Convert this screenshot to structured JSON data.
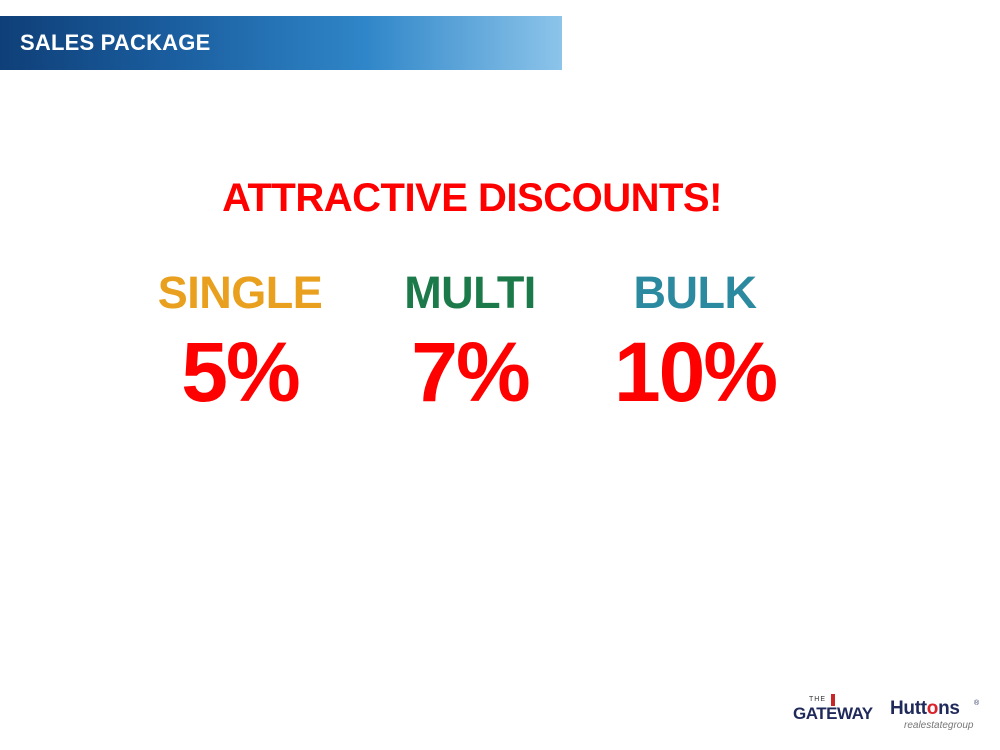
{
  "header": {
    "title": "SALES PACKAGE"
  },
  "headline": {
    "text": "ATTRACTIVE DISCOUNTS!",
    "color": "#ff0000"
  },
  "tiers": [
    {
      "label": "SINGLE",
      "value": "5%",
      "label_color": "#e8a01e",
      "value_color": "#ff0000"
    },
    {
      "label": "MULTI",
      "value": "7%",
      "label_color": "#1c7a4a",
      "value_color": "#ff0000"
    },
    {
      "label": "BULK",
      "value": "10%",
      "label_color": "#2b8aa0",
      "value_color": "#ff0000"
    }
  ],
  "logos": {
    "gateway": {
      "small": "THE",
      "main": "GATEWAY"
    },
    "huttons": {
      "main_pre": "Hutt",
      "main_dot": "o",
      "main_post": "ns",
      "reg": "®",
      "sub": "realestategroup"
    }
  }
}
